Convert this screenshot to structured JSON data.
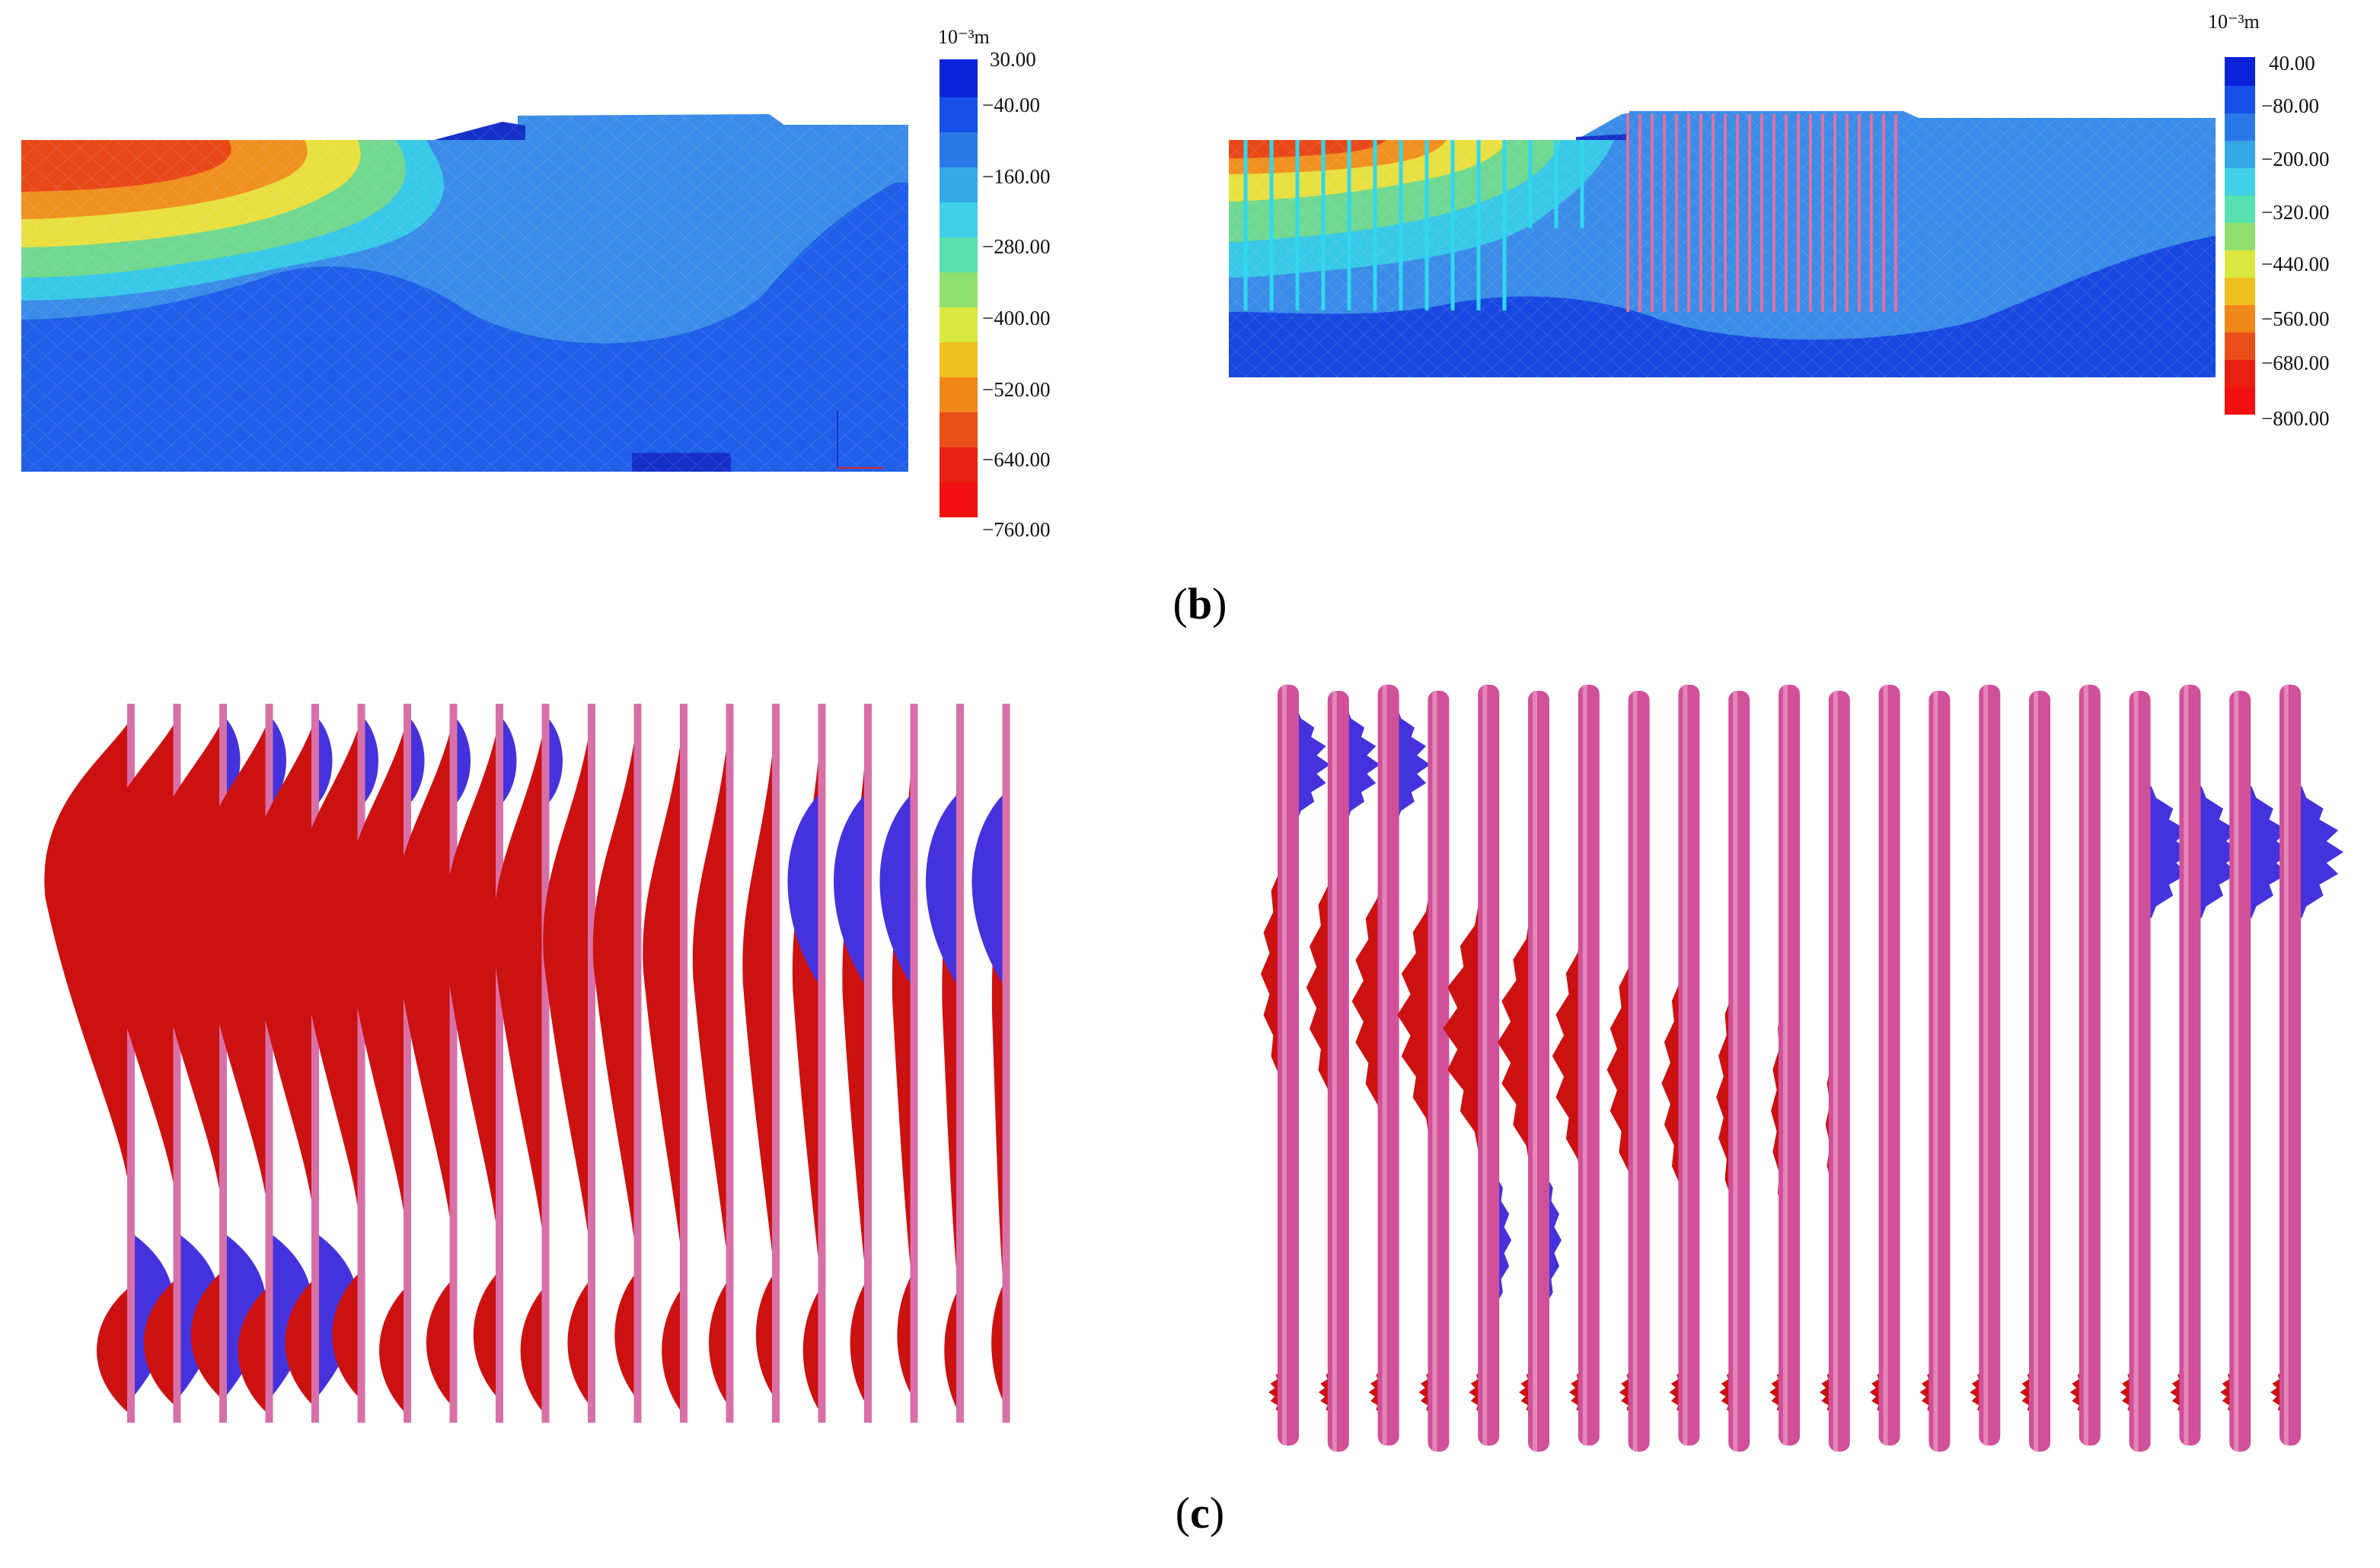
{
  "panel_b": {
    "caption_label": "b",
    "left_plot": {
      "legend_unit": "10⁻³m",
      "legend_ticks": [
        "30.00",
        "−40.00",
        "−160.00",
        "−280.00",
        "−400.00",
        "−520.00",
        "−640.00",
        "−760.00"
      ]
    },
    "right_plot": {
      "legend_unit": "10⁻³m",
      "legend_ticks": [
        "40.00",
        "−80.00",
        "−200.00",
        "−320.00",
        "−440.00",
        "−560.00",
        "−680.00",
        "−800.00"
      ]
    }
  },
  "panel_c": {
    "caption_label": "c",
    "left_pile_count": 20,
    "right_pile_count": 21
  },
  "colors": {
    "positive_fill": "#cc1111",
    "negative_fill": "#4433dd",
    "pile_left": "#d870a8",
    "pile_right": "#d0509a"
  }
}
